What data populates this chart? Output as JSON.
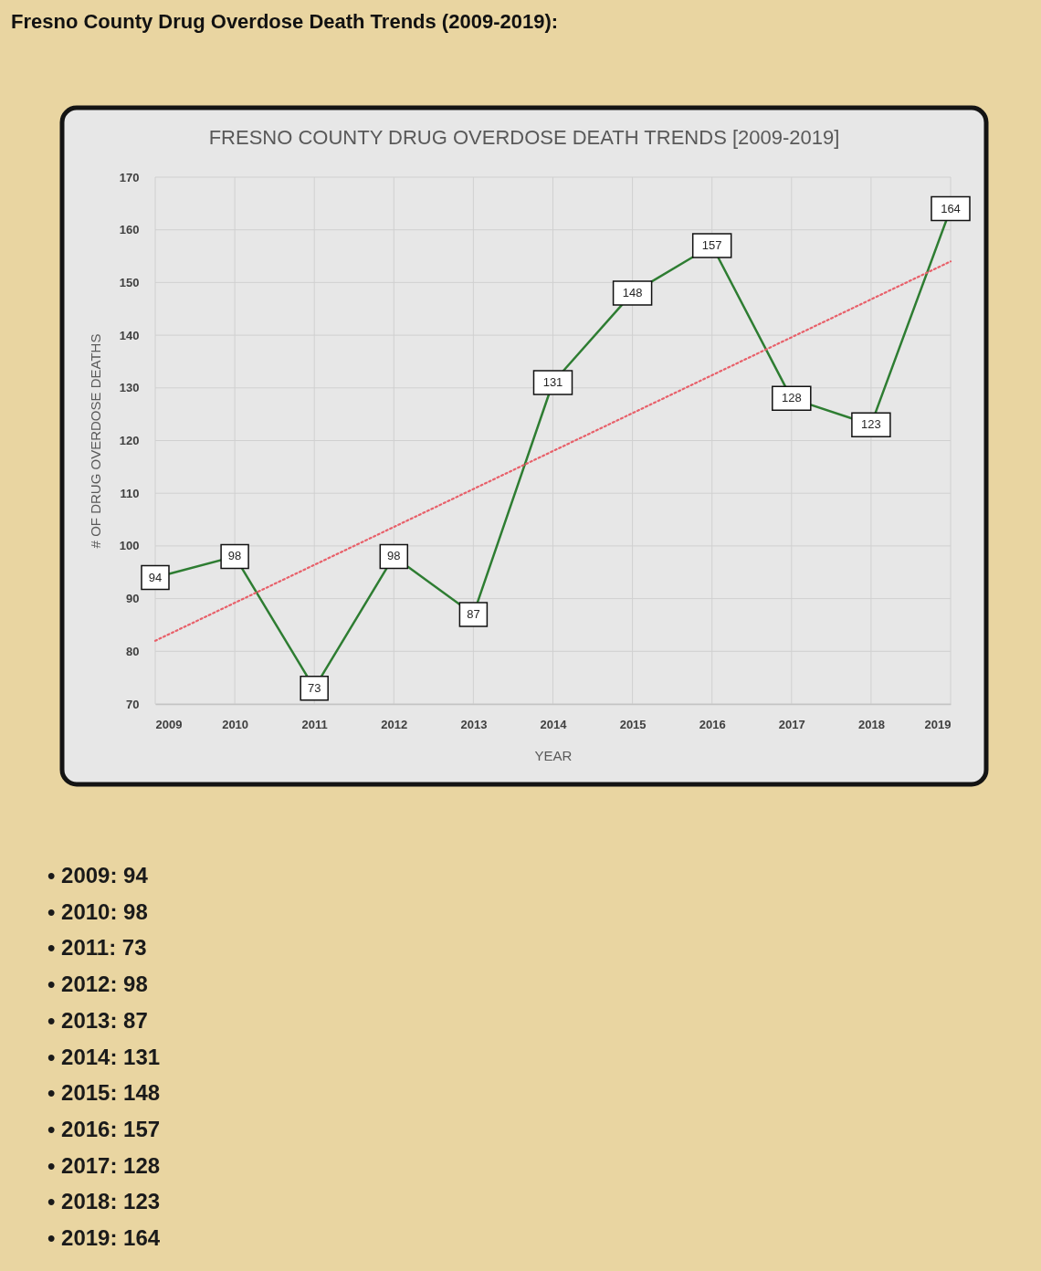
{
  "chart_data": {
    "type": "line",
    "title": "Fresno County Drug Overdose Death Trends (2009-2019):",
    "subtitle": "FRESNO COUNTY DRUG OVERDOSE DEATH TRENDS [2009-2019]",
    "xlabel": "YEAR",
    "ylabel": "# OF DRUG OVERDOSE DEATHS",
    "x": [
      2009,
      2010,
      2011,
      2012,
      2013,
      2014,
      2015,
      2016,
      2017,
      2018,
      2019
    ],
    "xlim": [
      2009,
      2019
    ],
    "xticks": [
      2009,
      2010,
      2011,
      2012,
      2013,
      2014,
      2015,
      2016,
      2017,
      2018,
      2019
    ],
    "ylim": [
      70,
      170
    ],
    "yticks": [
      70,
      80,
      90,
      100,
      110,
      120,
      130,
      140,
      150,
      160,
      170
    ],
    "grid": true,
    "data_labels": true,
    "series": [
      {
        "color": "#2e7d32",
        "line_style": "solid",
        "marker": "square",
        "values": [
          94,
          98,
          73,
          98,
          87,
          131,
          148,
          157,
          128,
          123,
          164
        ]
      },
      {
        "type": "line",
        "color": "#e8606a",
        "line_style": "dotted",
        "data_labels": false,
        "x": [
          2009,
          2019
        ],
        "values": [
          82,
          154
        ]
      }
    ],
    "annotations": [
      "• 2009: 94",
      "• 2010: 98",
      "• 2011: 73",
      "• 2012: 98",
      "• 2013: 87",
      "• 2014: 131",
      "• 2015: 148",
      "• 2016: 157",
      "• 2017: 128",
      "• 2018: 123",
      "• 2019: 164"
    ]
  }
}
